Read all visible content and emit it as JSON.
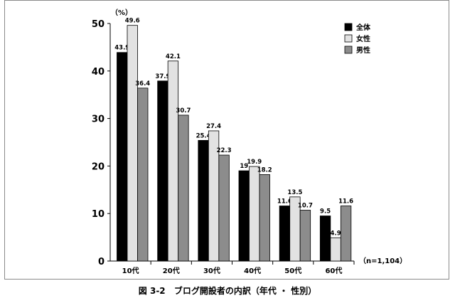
{
  "figure": {
    "number": "図 3-2",
    "title": "ブログ開設者の内訳（年代 ・ 性別）"
  },
  "chart_data": {
    "type": "bar",
    "unit_label": "（%）",
    "note": "（n=1,104）",
    "categories": [
      "10代",
      "20代",
      "30代",
      "40代",
      "50代",
      "60代"
    ],
    "ylim": [
      0,
      50
    ],
    "yticks": [
      0,
      10,
      20,
      30,
      40,
      50
    ],
    "legend_position": "top-right",
    "series": [
      {
        "name": "全体",
        "color": "#000000",
        "values": [
          43.9,
          37.9,
          25.4,
          19,
          11.6,
          9.5
        ]
      },
      {
        "name": "女性",
        "color": "#e2e2e2",
        "values": [
          49.6,
          42.1,
          27.4,
          19.9,
          13.5,
          4.9
        ]
      },
      {
        "name": "男性",
        "color": "#8c8c8c",
        "values": [
          36.4,
          30.7,
          22.3,
          18.2,
          10.7,
          11.6
        ]
      }
    ]
  }
}
